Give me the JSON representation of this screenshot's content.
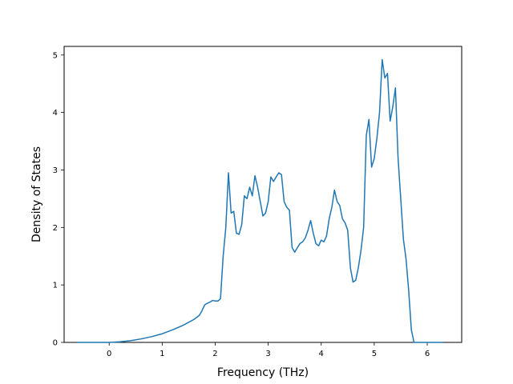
{
  "chart_data": {
    "type": "line",
    "title": "",
    "xlabel": "Frequency (THz)",
    "ylabel": "Density of States",
    "xlim": [
      -0.85,
      6.65
    ],
    "ylim": [
      0,
      5.15
    ],
    "xticks": [
      0,
      1,
      2,
      3,
      4,
      5,
      6
    ],
    "yticks": [
      0,
      1,
      2,
      3,
      4,
      5
    ],
    "grid": false,
    "legend": "none",
    "series": [
      {
        "color": "#1f77b4",
        "x": [
          -0.6,
          -0.3,
          0,
          0.2,
          0.4,
          0.6,
          0.8,
          1.0,
          1.2,
          1.4,
          1.6,
          1.7,
          1.75,
          1.8,
          1.85,
          1.9,
          1.95,
          2.0,
          2.05,
          2.1,
          2.15,
          2.2,
          2.25,
          2.3,
          2.35,
          2.4,
          2.45,
          2.5,
          2.55,
          2.6,
          2.65,
          2.7,
          2.75,
          2.8,
          2.85,
          2.9,
          2.95,
          3.0,
          3.05,
          3.1,
          3.15,
          3.2,
          3.25,
          3.3,
          3.35,
          3.4,
          3.45,
          3.5,
          3.55,
          3.6,
          3.65,
          3.7,
          3.75,
          3.8,
          3.85,
          3.9,
          3.95,
          4.0,
          4.05,
          4.1,
          4.15,
          4.2,
          4.25,
          4.3,
          4.35,
          4.4,
          4.45,
          4.5,
          4.55,
          4.6,
          4.65,
          4.7,
          4.75,
          4.8,
          4.85,
          4.9,
          4.95,
          5.0,
          5.05,
          5.1,
          5.15,
          5.2,
          5.25,
          5.3,
          5.35,
          5.4,
          5.45,
          5.5,
          5.55,
          5.6,
          5.65,
          5.7,
          5.75,
          5.8,
          5.85,
          6.0,
          6.15,
          6.3
        ],
        "y": [
          0,
          0,
          0,
          0.01,
          0.03,
          0.06,
          0.1,
          0.15,
          0.22,
          0.3,
          0.4,
          0.47,
          0.55,
          0.65,
          0.68,
          0.7,
          0.73,
          0.72,
          0.72,
          0.76,
          1.5,
          2.0,
          2.95,
          2.25,
          2.28,
          1.9,
          1.88,
          2.05,
          2.55,
          2.5,
          2.7,
          2.55,
          2.9,
          2.7,
          2.45,
          2.2,
          2.25,
          2.45,
          2.88,
          2.8,
          2.88,
          2.95,
          2.92,
          2.45,
          2.35,
          2.3,
          1.65,
          1.57,
          1.65,
          1.72,
          1.75,
          1.82,
          1.95,
          2.12,
          1.9,
          1.72,
          1.68,
          1.78,
          1.75,
          1.85,
          2.15,
          2.35,
          2.65,
          2.45,
          2.38,
          2.15,
          2.08,
          1.95,
          1.3,
          1.05,
          1.08,
          1.3,
          1.6,
          2.0,
          3.6,
          3.88,
          3.05,
          3.2,
          3.55,
          4.0,
          4.92,
          4.6,
          4.68,
          3.85,
          4.1,
          4.43,
          3.2,
          2.5,
          1.8,
          1.45,
          0.9,
          0.22,
          0,
          0,
          0,
          0,
          0,
          0
        ]
      }
    ]
  }
}
